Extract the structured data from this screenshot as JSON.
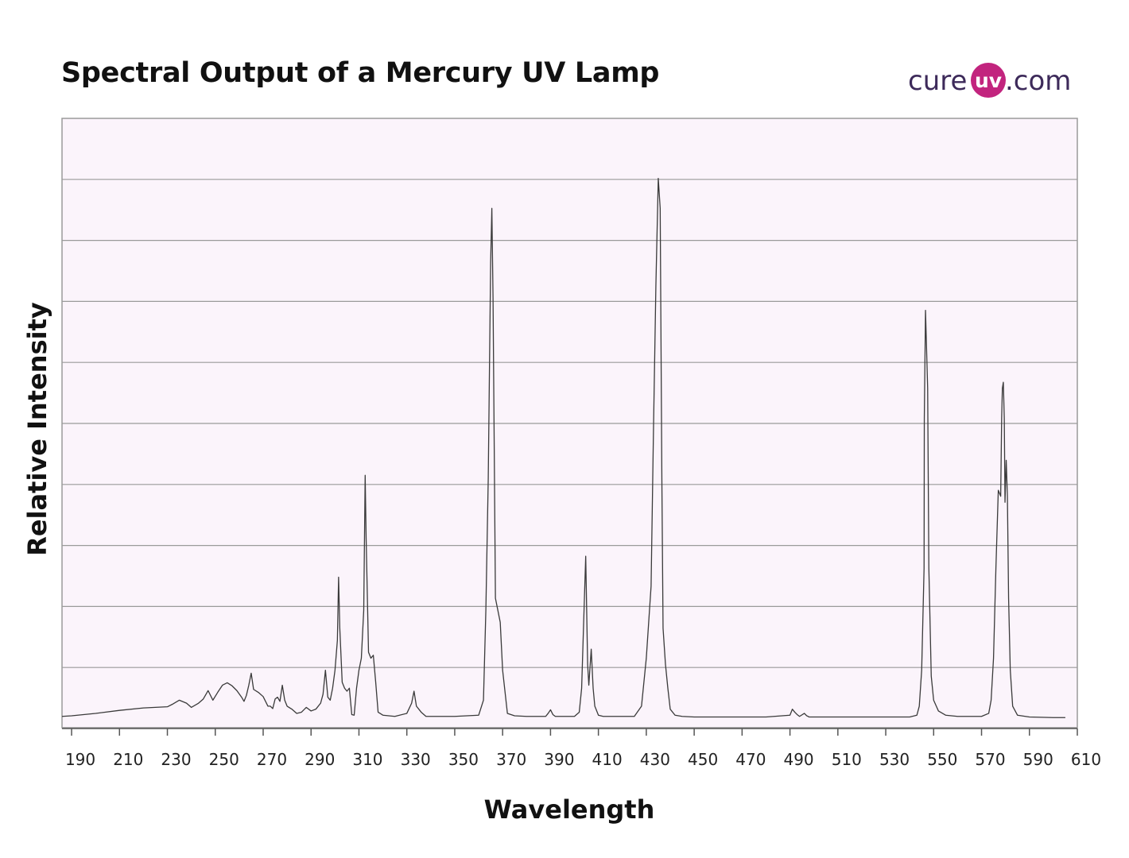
{
  "logo": {
    "prefix": "cure",
    "badge": "uv",
    "suffix": ".com"
  },
  "colors": {
    "plot_bg": "#fbf4fb",
    "grid": "#9a9a9a",
    "line": "#3a3a3a",
    "logo_text": "#3d2a5a",
    "logo_badge": "#c2247e"
  },
  "chart_data": {
    "type": "line",
    "title": "Spectral Output of a Mercury UV Lamp",
    "xlabel": "Wavelength",
    "ylabel": "Relative Intensity",
    "xlim": [
      186,
      610
    ],
    "ylim": [
      0,
      100
    ],
    "xticks": [
      190,
      210,
      230,
      250,
      270,
      290,
      310,
      330,
      350,
      370,
      390,
      410,
      430,
      450,
      470,
      490,
      510,
      530,
      550,
      570,
      590,
      610
    ],
    "grid": true,
    "legend": "none",
    "series": [
      {
        "x": [
          186,
          190,
          200,
          210,
          220,
          230,
          232,
          235,
          238,
          240,
          243,
          245,
          247,
          249,
          251,
          253,
          255,
          257,
          259,
          261,
          262,
          263,
          264,
          265,
          266,
          268,
          270,
          272,
          273,
          274,
          275,
          276,
          277,
          278,
          279,
          280,
          282,
          284,
          286,
          288,
          290,
          292,
          294,
          295,
          296,
          297,
          298,
          299,
          300,
          301,
          301.5,
          302,
          303,
          304,
          305,
          306,
          307,
          308,
          309,
          310,
          311,
          312,
          312.6,
          313,
          314,
          315,
          316,
          317,
          318,
          320,
          325,
          330,
          332,
          333,
          334,
          336,
          338,
          340,
          350,
          360,
          362,
          363,
          364,
          365,
          365.5,
          366,
          367,
          368,
          369,
          370,
          372,
          375,
          380,
          385,
          388,
          389,
          390,
          391,
          392,
          395,
          400,
          402,
          403,
          404,
          404.7,
          405.5,
          406,
          407,
          407.8,
          408.5,
          409,
          410,
          412,
          415,
          420,
          425,
          428,
          430,
          432,
          433,
          434,
          435,
          435.8,
          436.5,
          437,
          438,
          439,
          440,
          442,
          445,
          450,
          460,
          470,
          480,
          490,
          491,
          492,
          493,
          494,
          496,
          497,
          498,
          500,
          510,
          520,
          530,
          540,
          543,
          544,
          545,
          546,
          546.1,
          546.6,
          547.5,
          548,
          549,
          550,
          552,
          555,
          560,
          570,
          573,
          574,
          575,
          576,
          577,
          578,
          578.4,
          578.7,
          579.1,
          579.5,
          579.8,
          580.3,
          580.8,
          581.3,
          582,
          583,
          585,
          590,
          600,
          605
        ],
        "y": [
          0.3,
          0.4,
          0.8,
          1.3,
          1.7,
          1.9,
          2.3,
          3.0,
          2.5,
          1.8,
          2.5,
          3.2,
          4.6,
          3.0,
          4.3,
          5.5,
          5.9,
          5.4,
          4.6,
          3.5,
          2.8,
          3.8,
          5.5,
          7.5,
          4.8,
          4.3,
          3.6,
          2.0,
          2.0,
          1.6,
          3.2,
          3.5,
          2.8,
          5.5,
          3.0,
          2.0,
          1.5,
          0.8,
          1.0,
          1.8,
          1.2,
          1.5,
          2.5,
          4.0,
          8.0,
          3.5,
          3.0,
          5.0,
          8.0,
          13.0,
          23.5,
          15.0,
          6.0,
          5.0,
          4.5,
          5.0,
          0.6,
          0.5,
          5.0,
          8.0,
          10.0,
          18.0,
          40.5,
          30.0,
          11.0,
          10.0,
          10.5,
          6.0,
          1.0,
          0.5,
          0.3,
          0.8,
          2.5,
          4.5,
          2.0,
          1.0,
          0.3,
          0.3,
          0.3,
          0.5,
          3.0,
          18.0,
          40.0,
          76.0,
          85.0,
          70.0,
          20.0,
          18.0,
          16.0,
          8.0,
          0.8,
          0.4,
          0.3,
          0.3,
          0.3,
          0.8,
          1.4,
          0.6,
          0.3,
          0.3,
          0.3,
          1.0,
          5.0,
          18.0,
          27.0,
          9.0,
          5.5,
          11.5,
          5.0,
          2.0,
          1.5,
          0.5,
          0.3,
          0.3,
          0.3,
          0.3,
          2.0,
          10.0,
          22.0,
          48.0,
          72.0,
          90.0,
          85.0,
          40.0,
          15.0,
          9.0,
          5.0,
          1.5,
          0.5,
          0.3,
          0.2,
          0.2,
          0.2,
          0.2,
          0.5,
          1.5,
          1.0,
          0.6,
          0.3,
          0.8,
          0.4,
          0.2,
          0.2,
          0.2,
          0.2,
          0.2,
          0.2,
          0.5,
          2.0,
          8.0,
          25.0,
          50.0,
          68.0,
          55.0,
          25.0,
          7.0,
          3.0,
          1.2,
          0.5,
          0.3,
          0.3,
          0.8,
          3.0,
          10.0,
          25.0,
          38.0,
          37.0,
          50.0,
          55.0,
          56.0,
          50.0,
          36.0,
          43.0,
          37.0,
          20.0,
          8.0,
          2.0,
          0.5,
          0.2,
          0.1,
          0.1
        ]
      }
    ]
  }
}
